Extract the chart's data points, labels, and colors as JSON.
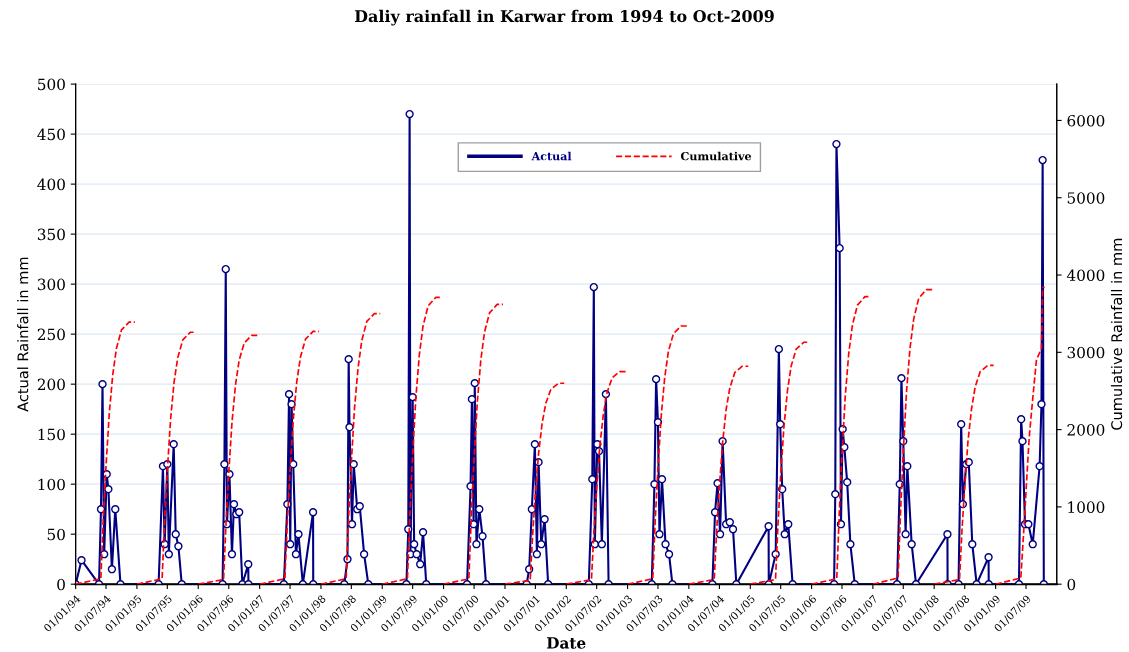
{
  "chart_data": {
    "type": "line",
    "title": "Daliy rainfall in Karwar from 1994 to Oct-2009",
    "xlabel": "Date",
    "ylabel": "Actual Rainfall in mm",
    "y2label": "Cumulative Rainfall in mm",
    "xlim": [
      "1994-01-01",
      "2009-12-31"
    ],
    "xticks": [
      {
        "value": "1994-01-01",
        "label": "01/01/94"
      },
      {
        "value": "1994-07-01",
        "label": "01/07/94"
      },
      {
        "value": "1995-01-01",
        "label": "01/01/95"
      },
      {
        "value": "1995-07-01",
        "label": "01/07/95"
      },
      {
        "value": "1996-01-01",
        "label": "01/01/96"
      },
      {
        "value": "1996-07-01",
        "label": "01/07/96"
      },
      {
        "value": "1997-01-01",
        "label": "01/01/97"
      },
      {
        "value": "1997-07-01",
        "label": "01/07/97"
      },
      {
        "value": "1998-01-01",
        "label": "01/01/98"
      },
      {
        "value": "1998-07-01",
        "label": "01/07/98"
      },
      {
        "value": "1999-01-01",
        "label": "01/01/99"
      },
      {
        "value": "1999-07-01",
        "label": "01/07/99"
      },
      {
        "value": "2000-01-01",
        "label": "01/01/00"
      },
      {
        "value": "2000-07-01",
        "label": "01/07/00"
      },
      {
        "value": "2001-01-01",
        "label": "01/01/01"
      },
      {
        "value": "2001-07-01",
        "label": "01/07/01"
      },
      {
        "value": "2002-01-01",
        "label": "01/01/02"
      },
      {
        "value": "2002-07-01",
        "label": "01/07/02"
      },
      {
        "value": "2003-01-01",
        "label": "01/01/03"
      },
      {
        "value": "2003-07-01",
        "label": "01/07/03"
      },
      {
        "value": "2004-01-01",
        "label": "01/01/04"
      },
      {
        "value": "2004-07-01",
        "label": "01/07/04"
      },
      {
        "value": "2005-01-01",
        "label": "01/01/05"
      },
      {
        "value": "2005-07-01",
        "label": "01/07/05"
      },
      {
        "value": "2006-01-01",
        "label": "01/01/06"
      },
      {
        "value": "2006-07-01",
        "label": "01/07/06"
      },
      {
        "value": "2007-01-01",
        "label": "01/01/07"
      },
      {
        "value": "2007-07-01",
        "label": "01/07/07"
      },
      {
        "value": "2008-01-01",
        "label": "01/01/08"
      },
      {
        "value": "2008-07-01",
        "label": "01/07/08"
      },
      {
        "value": "2009-01-01",
        "label": "01/01/09"
      },
      {
        "value": "2009-07-01",
        "label": "01/07/09"
      }
    ],
    "ylim": [
      0,
      500
    ],
    "yticks": [
      0,
      50,
      100,
      150,
      200,
      250,
      300,
      350,
      400,
      450,
      500
    ],
    "y2lim": [
      0,
      6470
    ],
    "y2ticks": [
      0,
      1000,
      2000,
      3000,
      4000,
      5000,
      6000
    ],
    "grid": "y",
    "legend": "top",
    "series": [
      {
        "name": "Actual",
        "color": "#000080",
        "marker": "circle",
        "line_style": "solid",
        "x": [
          "1994-01-01",
          "1994-02-05",
          "1994-05-20",
          "1994-06-01",
          "1994-06-10",
          "1994-06-20",
          "1994-07-05",
          "1994-07-15",
          "1994-08-05",
          "1994-08-25",
          "1994-09-25",
          "1995-05-10",
          "1995-06-05",
          "1995-06-15",
          "1995-07-01",
          "1995-07-10",
          "1995-08-08",
          "1995-08-20",
          "1995-09-05",
          "1995-09-25",
          "1996-05-25",
          "1996-06-05",
          "1996-06-13",
          "1996-06-20",
          "1996-07-05",
          "1996-07-20",
          "1996-08-01",
          "1996-08-15",
          "1996-09-01",
          "1996-09-20",
          "1996-10-25",
          "1996-10-26",
          "1997-05-25",
          "1997-06-15",
          "1997-06-25",
          "1997-07-02",
          "1997-07-10",
          "1997-07-20",
          "1997-08-05",
          "1997-08-20",
          "1997-09-15",
          "1997-11-15",
          "1997-11-16",
          "1998-05-20",
          "1998-06-08",
          "1998-06-15",
          "1998-06-20",
          "1998-07-05",
          "1998-07-15",
          "1998-08-05",
          "1998-08-20",
          "1998-09-15",
          "1998-10-10",
          "1999-05-25",
          "1999-06-05",
          "1999-06-13",
          "1999-06-18",
          "1999-07-01",
          "1999-07-10",
          "1999-07-25",
          "1999-08-15",
          "1999-09-01",
          "1999-09-20",
          "2000-05-20",
          "2000-06-10",
          "2000-06-18",
          "2000-06-28",
          "2000-07-05",
          "2000-07-15",
          "2000-08-01",
          "2000-08-20",
          "2000-09-10",
          "2001-05-10",
          "2001-05-25",
          "2001-06-10",
          "2001-06-28",
          "2001-07-10",
          "2001-07-20",
          "2001-08-05",
          "2001-08-25",
          "2001-09-15",
          "2002-05-15",
          "2002-06-05",
          "2002-06-14",
          "2002-06-20",
          "2002-07-05",
          "2002-07-15",
          "2002-08-01",
          "2002-08-25",
          "2002-09-10",
          "2003-05-25",
          "2003-06-10",
          "2003-06-20",
          "2003-07-01",
          "2003-07-10",
          "2003-07-25",
          "2003-08-15",
          "2003-09-05",
          "2003-09-25",
          "2004-05-20",
          "2004-06-05",
          "2004-06-20",
          "2004-07-05",
          "2004-07-20",
          "2004-08-10",
          "2004-09-01",
          "2004-09-20",
          "2004-10-10",
          "2005-04-20",
          "2005-04-21",
          "2005-06-01",
          "2005-06-20",
          "2005-06-28",
          "2005-07-10",
          "2005-07-25",
          "2005-08-15",
          "2005-09-10",
          "2006-05-15",
          "2006-05-22",
          "2006-05-29",
          "2006-06-17",
          "2006-06-25",
          "2006-07-05",
          "2006-07-15",
          "2006-08-01",
          "2006-08-20",
          "2006-09-15",
          "2007-05-25",
          "2007-06-10",
          "2007-06-20",
          "2007-07-01",
          "2007-07-15",
          "2007-07-25",
          "2007-08-20",
          "2007-09-15",
          "2008-03-20",
          "2008-03-21",
          "2008-05-25",
          "2008-06-10",
          "2008-06-20",
          "2008-07-10",
          "2008-07-25",
          "2008-08-15",
          "2008-09-10",
          "2008-11-20",
          "2008-11-21",
          "2009-05-20",
          "2009-06-02",
          "2009-06-10",
          "2009-06-25",
          "2009-07-15",
          "2009-08-10",
          "2009-09-20",
          "2009-10-01",
          "2009-10-08",
          "2009-10-15"
        ],
        "values": [
          0,
          24,
          0,
          75,
          200,
          30,
          110,
          95,
          15,
          75,
          0,
          0,
          118,
          40,
          120,
          30,
          140,
          50,
          38,
          0,
          0,
          120,
          315,
          60,
          110,
          30,
          80,
          70,
          72,
          0,
          20,
          0,
          0,
          80,
          190,
          40,
          180,
          120,
          30,
          50,
          0,
          72,
          0,
          0,
          25,
          225,
          157,
          60,
          120,
          75,
          78,
          30,
          0,
          0,
          55,
          470,
          30,
          187,
          40,
          30,
          20,
          52,
          0,
          0,
          98,
          185,
          60,
          201,
          40,
          75,
          48,
          0,
          0,
          15,
          75,
          140,
          30,
          122,
          40,
          65,
          0,
          0,
          105,
          297,
          40,
          140,
          133,
          40,
          190,
          0,
          0,
          100,
          205,
          162,
          50,
          105,
          40,
          30,
          0,
          0,
          72,
          101,
          50,
          143,
          60,
          62,
          55,
          0,
          58,
          0,
          30,
          235,
          160,
          95,
          50,
          60,
          0,
          0,
          90,
          440,
          336,
          60,
          155,
          137,
          102,
          40,
          0,
          0,
          100,
          206,
          143,
          50,
          118,
          40,
          0,
          50,
          0,
          0,
          160,
          80,
          120,
          122,
          40,
          0,
          27,
          0,
          0,
          165,
          143,
          60,
          60,
          40,
          118,
          180,
          424,
          0
        ]
      },
      {
        "name": "Cumulative",
        "color": "#ff0000",
        "marker": "none",
        "line_style": "dashed",
        "axis": "y2",
        "x": [
          "1994-01-01",
          "1994-05-31",
          "1994-06-15",
          "1994-07-01",
          "1994-07-20",
          "1994-08-10",
          "1994-09-01",
          "1994-10-01",
          "1994-11-15",
          "1994-12-20",
          "1994-12-25",
          "1995-01-01",
          "1995-05-31",
          "1995-06-15",
          "1995-07-01",
          "1995-07-20",
          "1995-08-10",
          "1995-09-01",
          "1995-10-01",
          "1995-11-15",
          "1995-12-20",
          "1995-12-25",
          "1996-01-01",
          "1996-05-31",
          "1996-06-15",
          "1996-07-01",
          "1996-07-20",
          "1996-08-10",
          "1996-09-01",
          "1996-10-01",
          "1996-11-15",
          "1996-12-20",
          "1996-12-25",
          "1997-01-01",
          "1997-05-31",
          "1997-06-15",
          "1997-07-01",
          "1997-07-20",
          "1997-08-10",
          "1997-09-01",
          "1997-10-01",
          "1997-11-15",
          "1997-12-20",
          "1997-12-25",
          "1998-01-01",
          "1998-05-31",
          "1998-06-15",
          "1998-07-01",
          "1998-07-20",
          "1998-08-10",
          "1998-09-01",
          "1998-10-01",
          "1998-11-15",
          "1998-12-20",
          "1998-12-25",
          "1999-01-01",
          "1999-05-31",
          "1999-06-15",
          "1999-07-01",
          "1999-07-20",
          "1999-08-10",
          "1999-09-01",
          "1999-10-01",
          "1999-11-15",
          "1999-12-20",
          "1999-12-25",
          "2000-01-01",
          "2000-05-31",
          "2000-06-15",
          "2000-07-01",
          "2000-07-20",
          "2000-08-10",
          "2000-09-01",
          "2000-10-01",
          "2000-11-15",
          "2000-12-20",
          "2000-12-25",
          "2001-01-01",
          "2001-05-31",
          "2001-06-15",
          "2001-07-01",
          "2001-07-20",
          "2001-08-10",
          "2001-09-01",
          "2001-10-01",
          "2001-11-15",
          "2001-12-20",
          "2001-12-25",
          "2002-01-01",
          "2002-05-31",
          "2002-06-15",
          "2002-07-01",
          "2002-07-20",
          "2002-08-10",
          "2002-09-01",
          "2002-10-01",
          "2002-11-15",
          "2002-12-20",
          "2002-12-25",
          "2003-01-01",
          "2003-05-31",
          "2003-06-15",
          "2003-07-01",
          "2003-07-20",
          "2003-08-10",
          "2003-09-01",
          "2003-10-01",
          "2003-11-15",
          "2003-12-20",
          "2003-12-25",
          "2004-01-01",
          "2004-05-31",
          "2004-06-15",
          "2004-07-01",
          "2004-07-20",
          "2004-08-10",
          "2004-09-01",
          "2004-10-01",
          "2004-11-15",
          "2004-12-20",
          "2004-12-25",
          "2005-01-01",
          "2005-05-31",
          "2005-06-15",
          "2005-07-01",
          "2005-07-20",
          "2005-08-10",
          "2005-09-01",
          "2005-10-01",
          "2005-11-15",
          "2005-12-20",
          "2005-12-25",
          "2006-01-01",
          "2006-05-31",
          "2006-06-15",
          "2006-07-01",
          "2006-07-20",
          "2006-08-10",
          "2006-09-01",
          "2006-10-01",
          "2006-11-15",
          "2006-12-20",
          "2006-12-25",
          "2007-01-01",
          "2007-05-31",
          "2007-06-15",
          "2007-07-01",
          "2007-07-20",
          "2007-08-10",
          "2007-09-01",
          "2007-10-01",
          "2007-11-15",
          "2007-12-20",
          "2007-12-25",
          "2008-01-01",
          "2008-05-31",
          "2008-06-15",
          "2008-07-01",
          "2008-07-20",
          "2008-08-10",
          "2008-09-01",
          "2008-10-01",
          "2008-11-15",
          "2008-12-20",
          "2008-12-25",
          "2009-01-01",
          "2009-05-31",
          "2009-06-15",
          "2009-07-01",
          "2009-07-20",
          "2009-08-10",
          "2009-09-01",
          "2009-10-01",
          "2009-10-08",
          "2009-10-20"
        ],
        "values": [
          0,
          70,
          850,
          1530,
          2200,
          2710,
          3050,
          3290,
          3390,
          3390,
          null,
          0,
          70,
          820,
          1470,
          2120,
          2610,
          2930,
          3160,
          3260,
          3260,
          null,
          0,
          60,
          810,
          1450,
          2090,
          2580,
          2900,
          3120,
          3220,
          3220,
          null,
          0,
          70,
          820,
          1470,
          2130,
          2620,
          2940,
          3170,
          3270,
          3270,
          null,
          0,
          70,
          880,
          1580,
          2280,
          2800,
          3150,
          3400,
          3500,
          3500,
          null,
          0,
          70,
          930,
          1670,
          2410,
          2970,
          3340,
          3600,
          3710,
          3710,
          null,
          0,
          70,
          910,
          1630,
          2350,
          2900,
          3260,
          3510,
          3620,
          3620,
          null,
          0,
          50,
          650,
          1170,
          1690,
          2080,
          2340,
          2520,
          2600,
          2600,
          null,
          0,
          60,
          690,
          1240,
          1790,
          2200,
          2480,
          2670,
          2750,
          2750,
          null,
          0,
          70,
          840,
          1500,
          2170,
          2670,
          3010,
          3240,
          3340,
          3340,
          null,
          0,
          60,
          710,
          1270,
          1830,
          2260,
          2540,
          2740,
          2820,
          2820,
          null,
          0,
          60,
          780,
          1410,
          2030,
          2500,
          2820,
          3040,
          3130,
          3130,
          null,
          0,
          70,
          930,
          1670,
          2420,
          2980,
          3350,
          3610,
          3720,
          3720,
          null,
          0,
          80,
          950,
          1710,
          2480,
          3050,
          3430,
          3700,
          3810,
          3810,
          null,
          0,
          60,
          710,
          1270,
          1840,
          2260,
          2550,
          2750,
          2830,
          2830,
          null,
          0,
          80,
          600,
          1200,
          1900,
          2400,
          2900,
          3050,
          3840,
          3840
        ]
      }
    ]
  }
}
